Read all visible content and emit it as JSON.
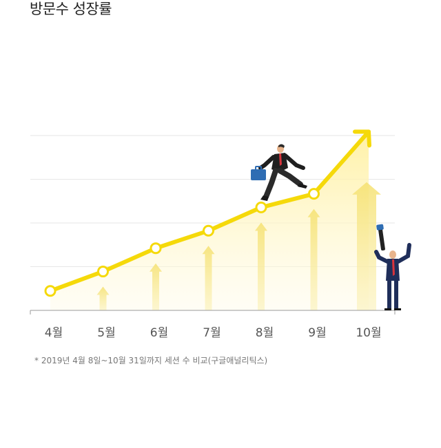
{
  "page": {
    "title": "방문수 성장률",
    "footnote": "* 2019년 4월 8일~10월 31일까지 세션 수 비교(구글애널리틱스)"
  },
  "colors": {
    "line": "#f5d90a",
    "marker_fill": "#ffffff",
    "area": "#fff3a8",
    "up_arrow": "#f7e88a",
    "grid": "#e6e6e6",
    "axis": "#999999"
  },
  "chart_data": {
    "type": "line",
    "categories": [
      "4월",
      "5월",
      "6월",
      "7월",
      "8월",
      "9월",
      "10월"
    ],
    "series": [
      {
        "values": [
          10,
          20,
          32,
          41,
          53,
          60,
          null
        ]
      }
    ],
    "final_arrow_value": 92,
    "ylim": [
      0,
      90
    ],
    "grid": true,
    "annotations": [
      "businessman-climbing-illustration",
      "businessman-with-telescope-illustration"
    ]
  }
}
